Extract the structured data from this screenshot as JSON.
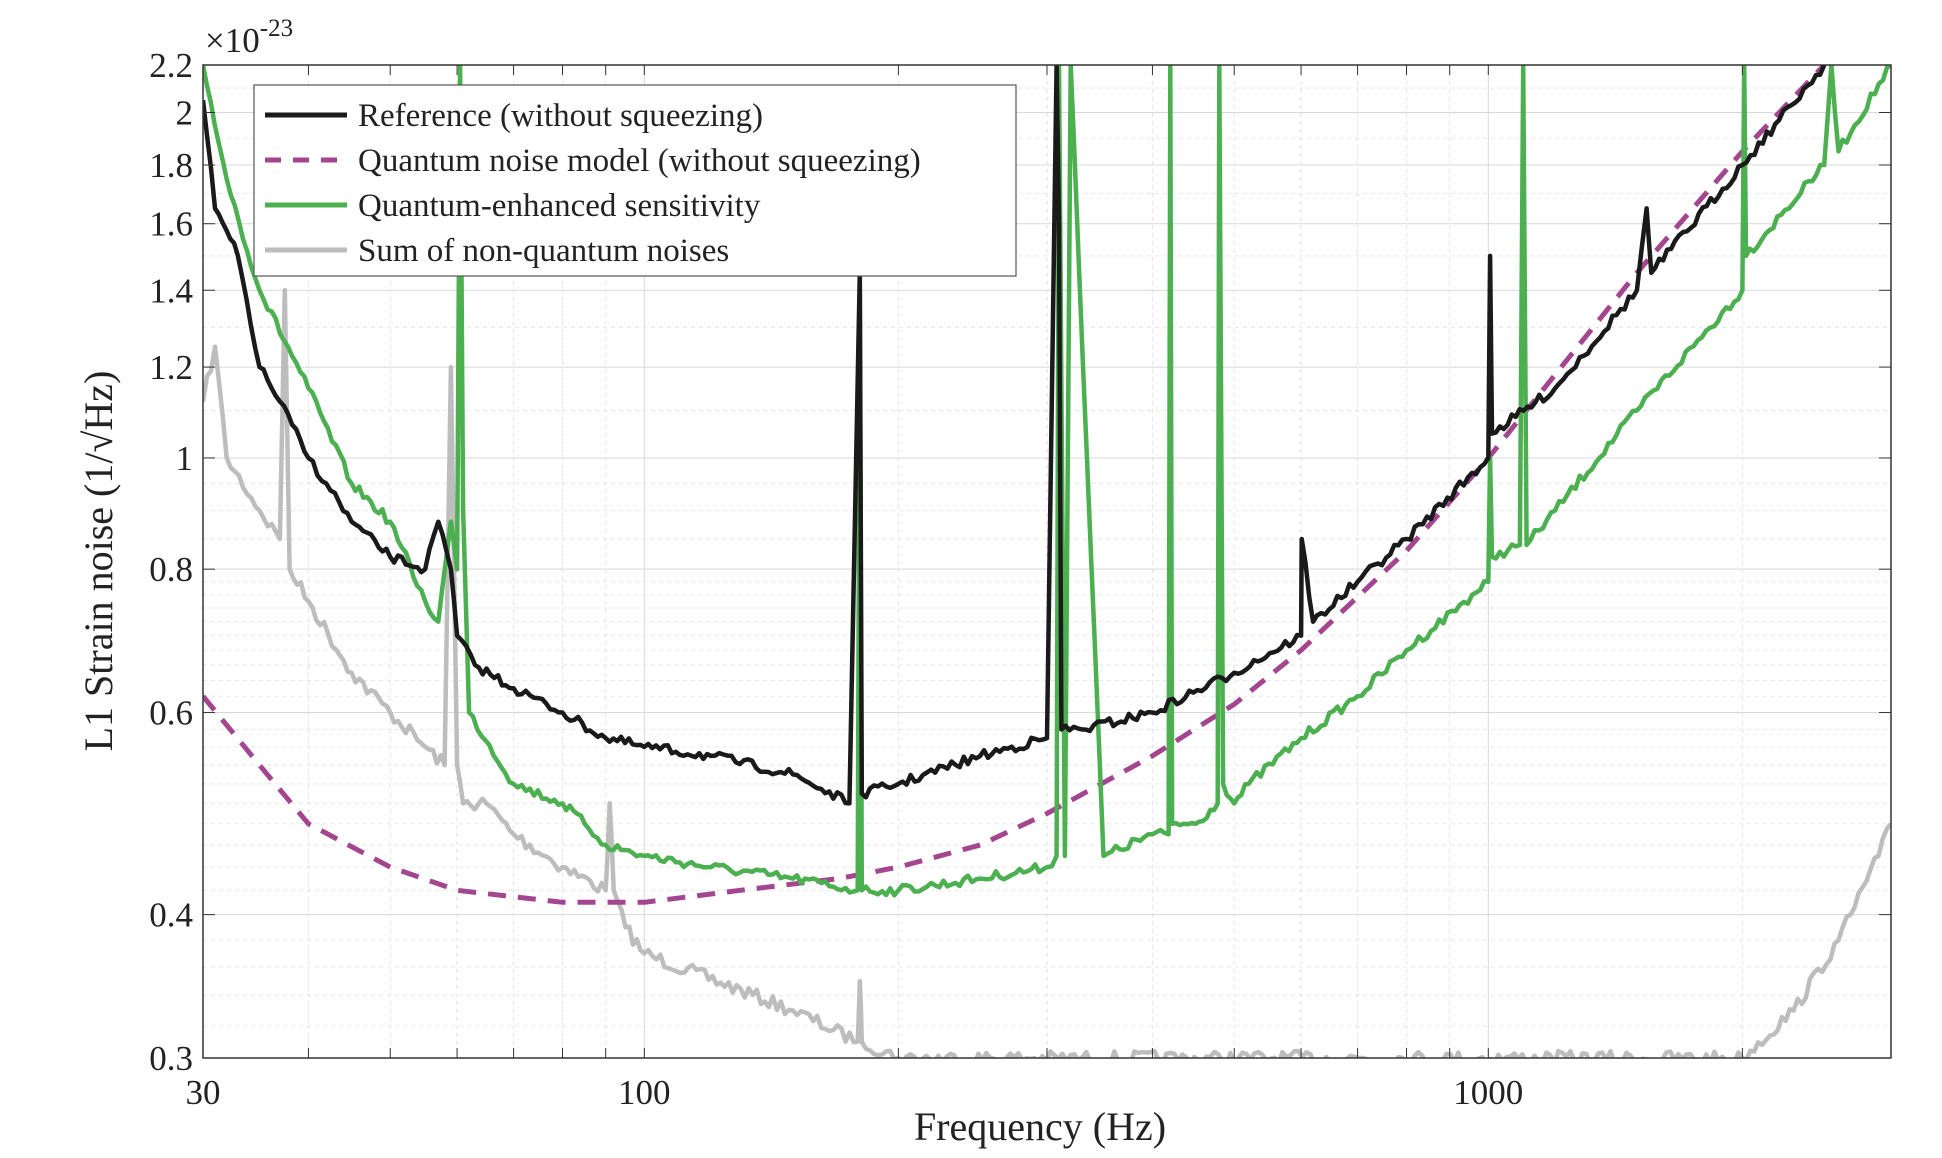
{
  "chart_data": {
    "type": "line",
    "title": "",
    "xlabel": "Frequency (Hz)",
    "ylabel": "L1 Strain noise (1/√Hz)",
    "y_multiplier": "×10",
    "y_exponent": "-23",
    "xscale": "log",
    "yscale": "log",
    "xlim": [
      30,
      3000
    ],
    "ylim": [
      0.3,
      2.2
    ],
    "grid": true,
    "legend_position": "top-left",
    "x_ticks": [
      30,
      100,
      1000
    ],
    "x_tick_labels": [
      "30",
      "100",
      "1000"
    ],
    "y_ticks": [
      0.3,
      0.4,
      0.6,
      0.8,
      1,
      1.2,
      1.4,
      1.6,
      1.8,
      2,
      2.2
    ],
    "y_tick_labels": [
      "0.3",
      "0.4",
      "0.6",
      "0.8",
      "1",
      "1.2",
      "1.4",
      "1.6",
      "1.8",
      "2",
      "2.2"
    ],
    "series": [
      {
        "name": "Reference (without squeezing)",
        "color": "#1a1a1a",
        "style": "solid",
        "x": [
          30,
          31,
          33,
          35,
          37,
          40,
          42,
          45,
          50,
          55,
          57,
          59,
          60,
          63,
          70,
          80,
          90,
          100,
          120,
          150,
          175,
          180,
          181,
          200,
          250,
          300,
          308,
          310,
          312,
          330,
          400,
          500,
          600,
          601,
          620,
          700,
          800,
          1000,
          1005,
          1010,
          1200,
          1500,
          1540,
          1560,
          2000,
          2500
        ],
        "y": [
          2.05,
          1.65,
          1.5,
          1.2,
          1.12,
          1.0,
          0.95,
          0.88,
          0.82,
          0.8,
          0.88,
          0.8,
          0.7,
          0.66,
          0.63,
          0.6,
          0.57,
          0.56,
          0.55,
          0.53,
          0.5,
          1.45,
          0.51,
          0.52,
          0.55,
          0.57,
          2.2,
          1.6,
          0.58,
          0.58,
          0.6,
          0.65,
          0.7,
          0.85,
          0.72,
          0.78,
          0.85,
          1.0,
          1.5,
          1.05,
          1.15,
          1.4,
          1.65,
          1.45,
          1.8,
          2.2
        ]
      },
      {
        "name": "Quantum noise model (without squeezing)",
        "color": "#a3468f",
        "style": "dashed",
        "x": [
          30,
          35,
          40,
          50,
          60,
          80,
          100,
          130,
          170,
          200,
          250,
          300,
          400,
          500,
          600,
          800,
          1000,
          1500,
          2000,
          2500
        ],
        "y": [
          0.62,
          0.54,
          0.48,
          0.44,
          0.42,
          0.41,
          0.41,
          0.42,
          0.43,
          0.44,
          0.46,
          0.49,
          0.55,
          0.61,
          0.68,
          0.83,
          1.0,
          1.45,
          1.85,
          2.2
        ]
      },
      {
        "name": "Quantum-enhanced sensitivity",
        "color": "#4caf50",
        "style": "solid",
        "x": [
          30,
          32,
          35,
          40,
          45,
          50,
          55,
          57,
          59,
          60,
          60.5,
          61,
          62,
          70,
          80,
          85,
          90,
          100,
          120,
          150,
          179,
          180,
          181,
          200,
          250,
          300,
          308,
          310,
          315,
          320,
          350,
          400,
          418,
          420,
          422,
          450,
          478,
          480,
          485,
          500,
          520,
          600,
          700,
          800,
          1000,
          1005,
          1010,
          1090,
          1100,
          1110,
          1200,
          1500,
          2000,
          2010,
          2020,
          2500,
          2550,
          2600,
          3000
        ],
        "y": [
          2.2,
          1.75,
          1.4,
          1.15,
          0.95,
          0.88,
          0.75,
          0.72,
          0.88,
          0.8,
          2.2,
          0.9,
          0.6,
          0.52,
          0.5,
          0.48,
          0.46,
          0.45,
          0.44,
          0.43,
          0.42,
          1.4,
          0.42,
          0.42,
          0.43,
          0.44,
          0.45,
          2.2,
          0.45,
          2.2,
          0.45,
          0.47,
          0.47,
          2.2,
          0.48,
          0.48,
          0.5,
          2.2,
          0.52,
          0.5,
          0.52,
          0.57,
          0.62,
          0.68,
          0.78,
          1.0,
          0.82,
          0.84,
          2.2,
          0.84,
          0.9,
          1.1,
          1.4,
          2.2,
          1.5,
          1.8,
          2.2,
          1.85,
          2.2
        ]
      },
      {
        "name": "Sum of non-quantum noises",
        "color": "#bdbdbd",
        "style": "solid",
        "x": [
          30,
          31,
          32,
          35,
          37,
          37.5,
          38,
          40,
          45,
          50,
          55,
          58,
          59,
          60,
          61,
          65,
          70,
          80,
          90,
          91,
          92,
          95,
          100,
          150,
          179,
          180,
          181,
          200,
          2000,
          2300,
          2600,
          2900,
          3000
        ],
        "y": [
          1.12,
          1.25,
          1.0,
          0.9,
          0.85,
          1.4,
          0.8,
          0.75,
          0.65,
          0.6,
          0.56,
          0.54,
          1.2,
          0.54,
          0.5,
          0.5,
          0.47,
          0.44,
          0.42,
          0.5,
          0.42,
          0.39,
          0.37,
          0.33,
          0.31,
          0.35,
          0.31,
          0.3,
          0.3,
          0.33,
          0.38,
          0.45,
          0.48
        ]
      }
    ]
  }
}
